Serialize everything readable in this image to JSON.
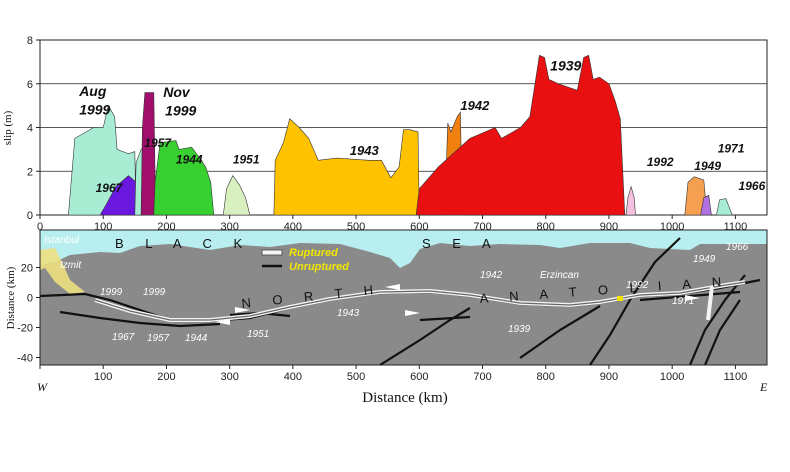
{
  "chart_data": [
    {
      "type": "area",
      "ylabel": "slip (m)",
      "ylim": [
        0,
        8
      ],
      "xlim": [
        0,
        1150
      ],
      "x_ticks": [
        0,
        100,
        200,
        300,
        400,
        500,
        600,
        700,
        800,
        900,
        1000,
        1100
      ],
      "y_ticks": [
        0,
        2,
        4,
        6,
        8
      ],
      "grid": true,
      "series": [
        {
          "name": "Aug 1999",
          "color": "#a8ecd4",
          "points": [
            [
              45,
              0
            ],
            [
              55,
              3.5
            ],
            [
              85,
              4
            ],
            [
              100,
              4
            ],
            [
              108,
              5
            ],
            [
              118,
              4.5
            ],
            [
              122,
              3
            ],
            [
              140,
              2.8
            ],
            [
              150,
              2.9
            ],
            [
              152,
              0
            ]
          ]
        },
        {
          "name": "1967",
          "color": "#6a18e0",
          "points": [
            [
              95,
              0
            ],
            [
              105,
              0.5
            ],
            [
              120,
              1.3
            ],
            [
              140,
              1.8
            ],
            [
              152,
              1.5
            ],
            [
              155,
              0
            ]
          ]
        },
        {
          "name": "1957",
          "color": "#a8ecd4",
          "points": [
            [
              150,
              0
            ],
            [
              152,
              2.4
            ],
            [
              160,
              3
            ],
            [
              165,
              3.1
            ],
            [
              168,
              0
            ]
          ]
        },
        {
          "name": "Nov 1999",
          "color": "#a0106a",
          "points": [
            [
              160,
              0
            ],
            [
              162,
              4
            ],
            [
              166,
              5.6
            ],
            [
              180,
              5.6
            ],
            [
              183,
              0
            ]
          ]
        },
        {
          "name": "1944",
          "color": "#38d030",
          "points": [
            [
              180,
              0
            ],
            [
              182,
              1.5
            ],
            [
              190,
              3.3
            ],
            [
              215,
              3.4
            ],
            [
              220,
              3
            ],
            [
              240,
              3.1
            ],
            [
              255,
              2.5
            ],
            [
              262,
              2.2
            ],
            [
              270,
              1.5
            ],
            [
              275,
              0
            ]
          ]
        },
        {
          "name": "1951",
          "color": "#d8f0c0",
          "points": [
            [
              290,
              0
            ],
            [
              295,
              1.2
            ],
            [
              305,
              1.8
            ],
            [
              315,
              1.4
            ],
            [
              325,
              0.8
            ],
            [
              332,
              0
            ]
          ]
        },
        {
          "name": "1943",
          "color": "#ffc200",
          "points": [
            [
              370,
              0
            ],
            [
              372,
              2.5
            ],
            [
              385,
              3.3
            ],
            [
              395,
              4.4
            ],
            [
              410,
              4
            ],
            [
              425,
              3.5
            ],
            [
              440,
              2.5
            ],
            [
              470,
              2.6
            ],
            [
              520,
              2.5
            ],
            [
              540,
              2.5
            ],
            [
              555,
              1.7
            ],
            [
              568,
              2.2
            ],
            [
              575,
              3.9
            ],
            [
              585,
              3.9
            ],
            [
              598,
              3.8
            ],
            [
              600,
              0
            ]
          ]
        },
        {
          "name": "1942",
          "color": "#f08010",
          "points": [
            [
              640,
              0
            ],
            [
              645,
              4.2
            ],
            [
              650,
              3.8
            ],
            [
              660,
              4.5
            ],
            [
              665,
              4.7
            ],
            [
              668,
              0
            ]
          ]
        },
        {
          "name": "1939",
          "color": "#e81010",
          "points": [
            [
              595,
              0
            ],
            [
              600,
              1.2
            ],
            [
              630,
              2.2
            ],
            [
              680,
              3.5
            ],
            [
              720,
              4
            ],
            [
              730,
              3.5
            ],
            [
              760,
              4
            ],
            [
              775,
              4.5
            ],
            [
              790,
              7.3
            ],
            [
              798,
              7.2
            ],
            [
              805,
              6.2
            ],
            [
              820,
              6
            ],
            [
              840,
              5.8
            ],
            [
              850,
              5.7
            ],
            [
              860,
              7.2
            ],
            [
              868,
              7.3
            ],
            [
              875,
              6.2
            ],
            [
              885,
              6.3
            ],
            [
              900,
              6
            ],
            [
              910,
              5.2
            ],
            [
              918,
              4.4
            ],
            [
              925,
              0
            ]
          ]
        },
        {
          "name": "1992",
          "color": "#f4c0e0",
          "points": [
            [
              927,
              0
            ],
            [
              930,
              0.8
            ],
            [
              935,
              1.3
            ],
            [
              940,
              0.8
            ],
            [
              942,
              0
            ]
          ]
        },
        {
          "name": "1949",
          "color": "#f4a050",
          "points": [
            [
              1020,
              0
            ],
            [
              1025,
              1.5
            ],
            [
              1035,
              1.75
            ],
            [
              1050,
              1.6
            ],
            [
              1055,
              0
            ]
          ]
        },
        {
          "name": "1971",
          "color": "#b070e0",
          "points": [
            [
              1045,
              0
            ],
            [
              1050,
              0.8
            ],
            [
              1058,
              0.9
            ],
            [
              1062,
              0
            ]
          ]
        },
        {
          "name": "1966",
          "color": "#a8ecd4",
          "points": [
            [
              1070,
              0
            ],
            [
              1075,
              0.7
            ],
            [
              1085,
              0.75
            ],
            [
              1095,
              0
            ]
          ]
        }
      ],
      "annotations": [
        {
          "text": "Aug",
          "x": 62,
          "y": 5.45,
          "size": 14
        },
        {
          "text": "1999",
          "x": 62,
          "y": 4.6,
          "size": 14
        },
        {
          "text": "1967",
          "x": 88,
          "y": 1.05,
          "size": 12
        },
        {
          "text": "1957",
          "x": 165,
          "y": 3.1,
          "size": 12
        },
        {
          "text": "Nov",
          "x": 195,
          "y": 5.4,
          "size": 14
        },
        {
          "text": "1999",
          "x": 198,
          "y": 4.55,
          "size": 14
        },
        {
          "text": "1944",
          "x": 215,
          "y": 2.35,
          "size": 12
        },
        {
          "text": "1951",
          "x": 305,
          "y": 2.35,
          "size": 12
        },
        {
          "text": "1943",
          "x": 490,
          "y": 2.75,
          "size": 13
        },
        {
          "text": "1942",
          "x": 665,
          "y": 4.8,
          "size": 13
        },
        {
          "text": "1939",
          "x": 807,
          "y": 6.6,
          "size": 14
        },
        {
          "text": "1992",
          "x": 960,
          "y": 2.25,
          "size": 12
        },
        {
          "text": "1949",
          "x": 1035,
          "y": 2.05,
          "size": 12
        },
        {
          "text": "1971",
          "x": 1072,
          "y": 2.85,
          "size": 12
        },
        {
          "text": "1966",
          "x": 1105,
          "y": 1.15,
          "size": 12
        }
      ]
    },
    {
      "type": "map",
      "xlabel": "Distance (km)",
      "ylabel": "Distance (km)",
      "xlim": [
        0,
        1150
      ],
      "ylim": [
        -45,
        45
      ],
      "x_ticks": [
        0,
        100,
        200,
        300,
        400,
        500,
        600,
        700,
        800,
        900,
        1000,
        1100
      ],
      "y_ticks": [
        20,
        0,
        -20,
        -40
      ],
      "direction_left": "W",
      "direction_right": "E",
      "sea_words": [
        "B L A C K",
        "S E A"
      ],
      "fault_words": [
        "N O R T H",
        "A N A T O L I A N"
      ],
      "places": [
        "Istanbul",
        "Izmit",
        "Erzincan"
      ],
      "legend": [
        "Ruptured",
        "Unruptured"
      ],
      "segment_labels": [
        "1999",
        "1999",
        "1967",
        "1957",
        "1944",
        "1951",
        "1943",
        "1942",
        "1939",
        "1992",
        "1949",
        "1966",
        "1971"
      ],
      "colors": {
        "sea": "#b8eef0",
        "land": "#8a8a8a",
        "fault": "#111111",
        "ruptured": "#f4f4f4",
        "legend_text": "#f2e600",
        "highlight": "#f2e600"
      }
    }
  ]
}
